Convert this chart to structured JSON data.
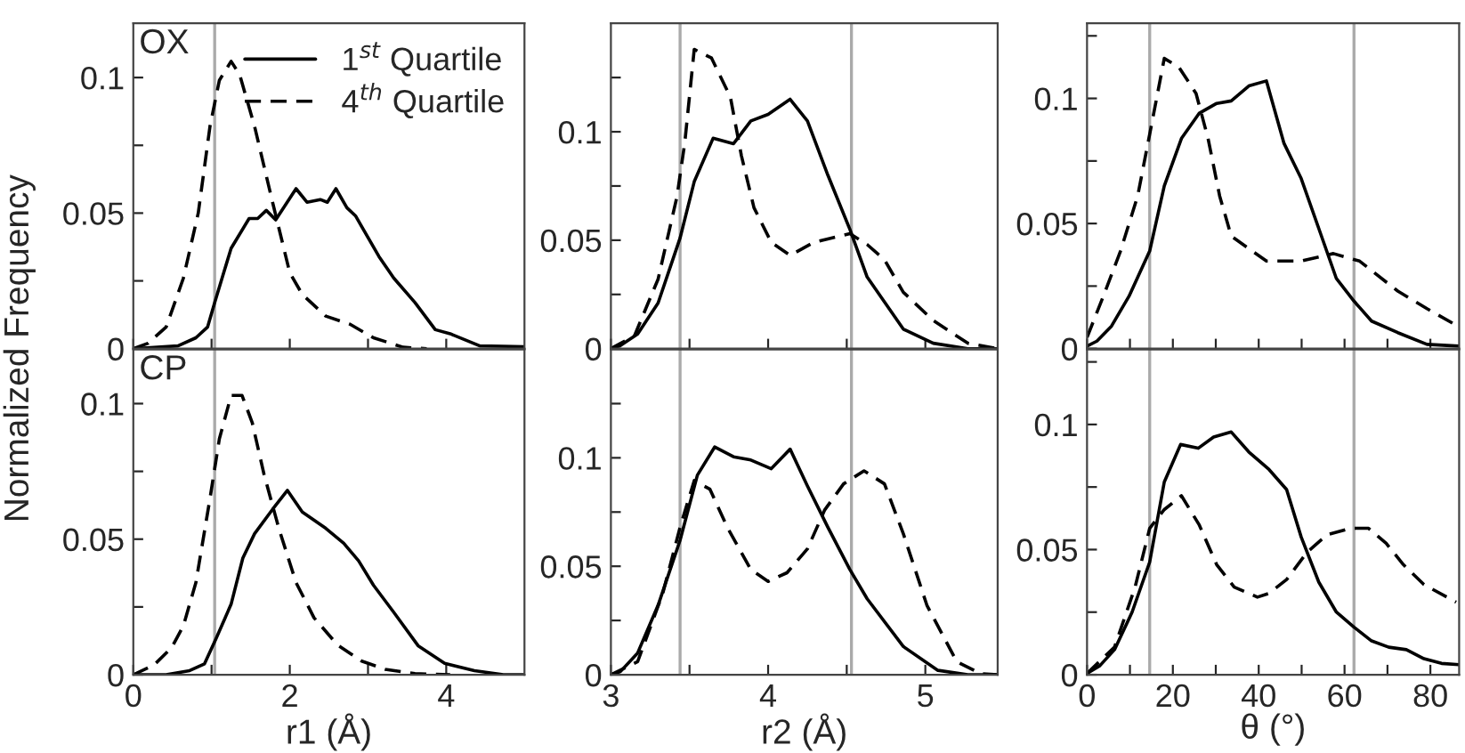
{
  "chart_data": [
    {
      "type": "line",
      "title": "OX",
      "ylabel": "Normalized Frequency",
      "legend": "top right",
      "tick_labels": "y",
      "xlim": [
        0,
        5
      ],
      "xticks": [
        0,
        {
          "value": 1,
          "label": null
        },
        2,
        {
          "value": 3,
          "label": null
        },
        4
      ],
      "ylim": [
        0,
        0.12
      ],
      "yticks": [
        0,
        {
          "value": 0.025,
          "label": null
        },
        0.05,
        {
          "value": 0.075,
          "label": null
        },
        0.1
      ],
      "ref_lines": [
        {
          "axis": "x",
          "value": 1.04,
          "color": "#aaaaaa"
        }
      ],
      "series": [
        {
          "name": "1$^{st}$ Quartile",
          "color": "#000000",
          "line_style": "solid",
          "x": [
            0,
            0.57,
            0.8,
            0.95,
            1.04,
            1.25,
            1.48,
            1.59,
            1.7,
            1.82,
            2.08,
            2.22,
            2.39,
            2.48,
            2.59,
            2.73,
            2.84,
            3.14,
            3.33,
            3.6,
            3.86,
            4.05,
            4.43,
            5.0
          ],
          "values": [
            0,
            0.001,
            0.004,
            0.008,
            0.017,
            0.037,
            0.048,
            0.048,
            0.051,
            0.0475,
            0.059,
            0.054,
            0.055,
            0.054,
            0.059,
            0.052,
            0.049,
            0.034,
            0.026,
            0.017,
            0.007,
            0.0055,
            0.001,
            0.0007
          ]
        },
        {
          "name": "4$^{th}$ Quartile",
          "color": "#000000",
          "line_style": "dashed",
          "x": [
            0,
            0.19,
            0.42,
            0.64,
            0.83,
            0.98,
            1.1,
            1.25,
            1.36,
            1.55,
            1.78,
            2.0,
            2.16,
            2.46,
            2.77,
            3.07,
            3.45,
            3.75
          ],
          "values": [
            0,
            0.002,
            0.008,
            0.026,
            0.05,
            0.082,
            0.099,
            0.106,
            0.101,
            0.082,
            0.054,
            0.028,
            0.02,
            0.012,
            0.009,
            0.004,
            0.0005,
            0
          ]
        }
      ]
    },
    {
      "type": "line",
      "tick_labels": "y",
      "xlim": [
        3,
        5.46
      ],
      "xticks": [
        3,
        {
          "value": 3.5,
          "label": null
        },
        4,
        {
          "value": 4.5,
          "label": null
        },
        5
      ],
      "ylim": [
        0,
        0.15
      ],
      "yticks": [
        0,
        {
          "value": 0.025,
          "label": null
        },
        0.05,
        {
          "value": 0.075,
          "label": null
        },
        0.1,
        {
          "value": 0.125,
          "label": null
        }
      ],
      "ref_lines": [
        {
          "axis": "x",
          "value": 3.44,
          "color": "#aaaaaa"
        },
        {
          "axis": "x",
          "value": 4.53,
          "color": "#aaaaaa"
        }
      ],
      "series": [
        {
          "color": "#000000",
          "line_style": "solid",
          "x": [
            3,
            3.06,
            3.17,
            3.3,
            3.44,
            3.53,
            3.65,
            3.78,
            3.89,
            4.0,
            4.14,
            4.25,
            4.38,
            4.52,
            4.63,
            4.86,
            5.05,
            5.27,
            5.46
          ],
          "values": [
            0,
            0.0014,
            0.0068,
            0.021,
            0.051,
            0.077,
            0.097,
            0.0945,
            0.105,
            0.108,
            0.115,
            0.105,
            0.08,
            0.055,
            0.033,
            0.009,
            0.0025,
            0,
            0
          ]
        },
        {
          "color": "#000000",
          "line_style": "dashed",
          "x": [
            3,
            3.15,
            3.3,
            3.42,
            3.47,
            3.53,
            3.64,
            3.76,
            3.83,
            3.91,
            4.02,
            4.14,
            4.29,
            4.52,
            4.63,
            4.74,
            4.86,
            5.05,
            5.27,
            5.46
          ],
          "values": [
            0,
            0.006,
            0.032,
            0.07,
            0.095,
            0.138,
            0.134,
            0.116,
            0.089,
            0.065,
            0.049,
            0.043,
            0.049,
            0.053,
            0.048,
            0.041,
            0.026,
            0.013,
            0.0025,
            0
          ]
        }
      ]
    },
    {
      "type": "line",
      "tick_labels": "y",
      "xlim": [
        0,
        86.7
      ],
      "xticks": [
        0,
        {
          "value": 10,
          "label": null
        },
        20,
        {
          "value": 30,
          "label": null
        },
        40,
        {
          "value": 50,
          "label": null
        },
        60,
        {
          "value": 70,
          "label": null
        },
        80
      ],
      "ylim": [
        0,
        0.13
      ],
      "yticks": [
        0,
        {
          "value": 0.025,
          "label": null
        },
        0.05,
        {
          "value": 0.075,
          "label": null
        },
        0.1,
        {
          "value": 0.125,
          "label": null
        }
      ],
      "ref_lines": [
        {
          "axis": "x",
          "value": 14.6,
          "color": "#aaaaaa"
        },
        {
          "axis": "x",
          "value": 62.2,
          "color": "#aaaaaa"
        }
      ],
      "series": [
        {
          "color": "#000000",
          "line_style": "solid",
          "x": [
            0,
            2.3,
            5.7,
            9.8,
            14.6,
            18,
            22,
            26.1,
            30.2,
            33.6,
            37.7,
            41.8,
            45.9,
            49.9,
            54,
            58.1,
            62.2,
            66.3,
            72.4,
            79.2,
            86.7
          ],
          "values": [
            0.001,
            0.003,
            0.009,
            0.021,
            0.039,
            0.065,
            0.084,
            0.094,
            0.098,
            0.099,
            0.105,
            0.107,
            0.082,
            0.068,
            0.048,
            0.028,
            0.019,
            0.011,
            0.0064,
            0.0017,
            0.001
          ]
        },
        {
          "color": "#000000",
          "line_style": "dashed",
          "x": [
            0,
            3.7,
            7.8,
            11.8,
            15.2,
            18,
            21.4,
            25.4,
            28.2,
            30.9,
            33.6,
            41.8,
            49.9,
            57.4,
            63.5,
            72.4,
            79.2,
            86.7
          ],
          "values": [
            0.0045,
            0.0205,
            0.039,
            0.061,
            0.091,
            0.116,
            0.1125,
            0.102,
            0.084,
            0.061,
            0.045,
            0.035,
            0.035,
            0.038,
            0.035,
            0.023,
            0.016,
            0.0087
          ]
        }
      ]
    },
    {
      "type": "line",
      "title": "CP",
      "xlabel": "r1 (Å)",
      "xlim": [
        0,
        5
      ],
      "xticks": [
        0,
        {
          "value": 1,
          "label": null
        },
        2,
        {
          "value": 3,
          "label": null
        },
        4
      ],
      "ylim": [
        0,
        0.12
      ],
      "yticks": [
        0,
        {
          "value": 0.025,
          "label": null
        },
        0.05,
        {
          "value": 0.075,
          "label": null
        },
        0.1
      ],
      "ref_lines": [
        {
          "axis": "x",
          "value": 1.04,
          "color": "#aaaaaa"
        }
      ],
      "series": [
        {
          "color": "#000000",
          "line_style": "solid",
          "x": [
            0,
            0.42,
            0.72,
            0.91,
            1.06,
            1.25,
            1.4,
            1.55,
            1.78,
            1.97,
            2.16,
            2.46,
            2.69,
            2.88,
            3.07,
            3.33,
            3.64,
            3.98,
            4.36,
            4.73,
            5.0
          ],
          "values": [
            0,
            0,
            0.0015,
            0.004,
            0.0135,
            0.026,
            0.043,
            0.052,
            0.061,
            0.068,
            0.06,
            0.054,
            0.0485,
            0.042,
            0.033,
            0.023,
            0.0107,
            0.0042,
            0.0015,
            0,
            0
          ]
        },
        {
          "color": "#000000",
          "line_style": "dashed",
          "x": [
            0,
            0.27,
            0.49,
            0.64,
            0.8,
            0.98,
            1.1,
            1.25,
            1.39,
            1.52,
            1.67,
            1.86,
            2.08,
            2.31,
            2.61,
            2.92,
            3.22,
            3.6,
            4.05
          ],
          "values": [
            0,
            0.0037,
            0.01,
            0.018,
            0.034,
            0.065,
            0.087,
            0.103,
            0.103,
            0.093,
            0.074,
            0.054,
            0.034,
            0.021,
            0.011,
            0.005,
            0.002,
            0.0004,
            0
          ]
        }
      ]
    },
    {
      "type": "line",
      "xlabel": "r2 (Å)",
      "xlim": [
        3,
        5.46
      ],
      "xticks": [
        3,
        {
          "value": 3.5,
          "label": null
        },
        4,
        {
          "value": 4.5,
          "label": null
        },
        5
      ],
      "ylim": [
        0,
        0.15
      ],
      "yticks": [
        0,
        {
          "value": 0.025,
          "label": null
        },
        0.05,
        {
          "value": 0.075,
          "label": null
        },
        0.1,
        {
          "value": 0.125,
          "label": null
        }
      ],
      "ref_lines": [
        {
          "axis": "x",
          "value": 3.44,
          "color": "#aaaaaa"
        },
        {
          "axis": "x",
          "value": 4.53,
          "color": "#aaaaaa"
        }
      ],
      "series": [
        {
          "color": "#000000",
          "line_style": "solid",
          "x": [
            3,
            3.06,
            3.17,
            3.3,
            3.44,
            3.55,
            3.66,
            3.78,
            3.89,
            4.02,
            4.14,
            4.25,
            4.38,
            4.52,
            4.63,
            4.86,
            5.08,
            5.27,
            5.46
          ],
          "values": [
            0,
            0.0014,
            0.01,
            0.032,
            0.062,
            0.092,
            0.105,
            0.1005,
            0.099,
            0.095,
            0.104,
            0.087,
            0.068,
            0.0485,
            0.035,
            0.013,
            0.002,
            0,
            0
          ]
        },
        {
          "color": "#000000",
          "line_style": "dashed",
          "x": [
            3,
            3.17,
            3.33,
            3.44,
            3.53,
            3.63,
            3.74,
            3.89,
            4.0,
            4.12,
            4.25,
            4.36,
            4.48,
            4.61,
            4.74,
            4.86,
            5.01,
            5.2,
            5.35,
            5.46
          ],
          "values": [
            0,
            0.006,
            0.0375,
            0.068,
            0.0895,
            0.0855,
            0.068,
            0.0485,
            0.043,
            0.047,
            0.058,
            0.076,
            0.088,
            0.094,
            0.088,
            0.065,
            0.032,
            0.006,
            0.0005,
            0
          ]
        }
      ]
    },
    {
      "type": "line",
      "xlabel": "θ (°)",
      "xlim": [
        0,
        86.7
      ],
      "xticks": [
        0,
        {
          "value": 10,
          "label": null
        },
        20,
        {
          "value": 30,
          "label": null
        },
        40,
        {
          "value": 50,
          "label": null
        },
        60,
        {
          "value": 70,
          "label": null
        },
        80
      ],
      "ylim": [
        0,
        0.13
      ],
      "yticks": [
        0,
        {
          "value": 0.025,
          "label": null
        },
        0.05,
        {
          "value": 0.075,
          "label": null
        },
        0.1,
        {
          "value": 0.125,
          "label": null
        }
      ],
      "ref_lines": [
        {
          "axis": "x",
          "value": 14.6,
          "color": "#aaaaaa"
        },
        {
          "axis": "x",
          "value": 62.2,
          "color": "#aaaaaa"
        }
      ],
      "series": [
        {
          "color": "#000000",
          "line_style": "solid",
          "x": [
            0,
            3,
            6.4,
            10.5,
            14.6,
            18,
            21.8,
            25.9,
            29.5,
            33.6,
            37.7,
            42.4,
            46.5,
            49.9,
            54,
            58.1,
            62.2,
            66.3,
            70.3,
            74.4,
            78.5,
            82.6,
            86.7
          ],
          "values": [
            0.0005,
            0.0036,
            0.01,
            0.025,
            0.045,
            0.077,
            0.092,
            0.0905,
            0.095,
            0.097,
            0.089,
            0.082,
            0.074,
            0.055,
            0.037,
            0.025,
            0.019,
            0.0135,
            0.011,
            0.01,
            0.0064,
            0.0045,
            0.004
          ]
        },
        {
          "color": "#000000",
          "line_style": "dashed",
          "x": [
            0,
            6.4,
            11.2,
            14.6,
            18,
            22,
            26.1,
            30.2,
            34.3,
            39.7,
            42.4,
            46.5,
            51.3,
            56,
            61.5,
            65.6,
            69.7,
            73.7,
            78.5,
            86
          ],
          "values": [
            0.0005,
            0.011,
            0.035,
            0.0585,
            0.066,
            0.0715,
            0.06,
            0.044,
            0.035,
            0.031,
            0.0325,
            0.038,
            0.049,
            0.056,
            0.0585,
            0.0585,
            0.0525,
            0.044,
            0.036,
            0.029
          ]
        }
      ]
    }
  ]
}
